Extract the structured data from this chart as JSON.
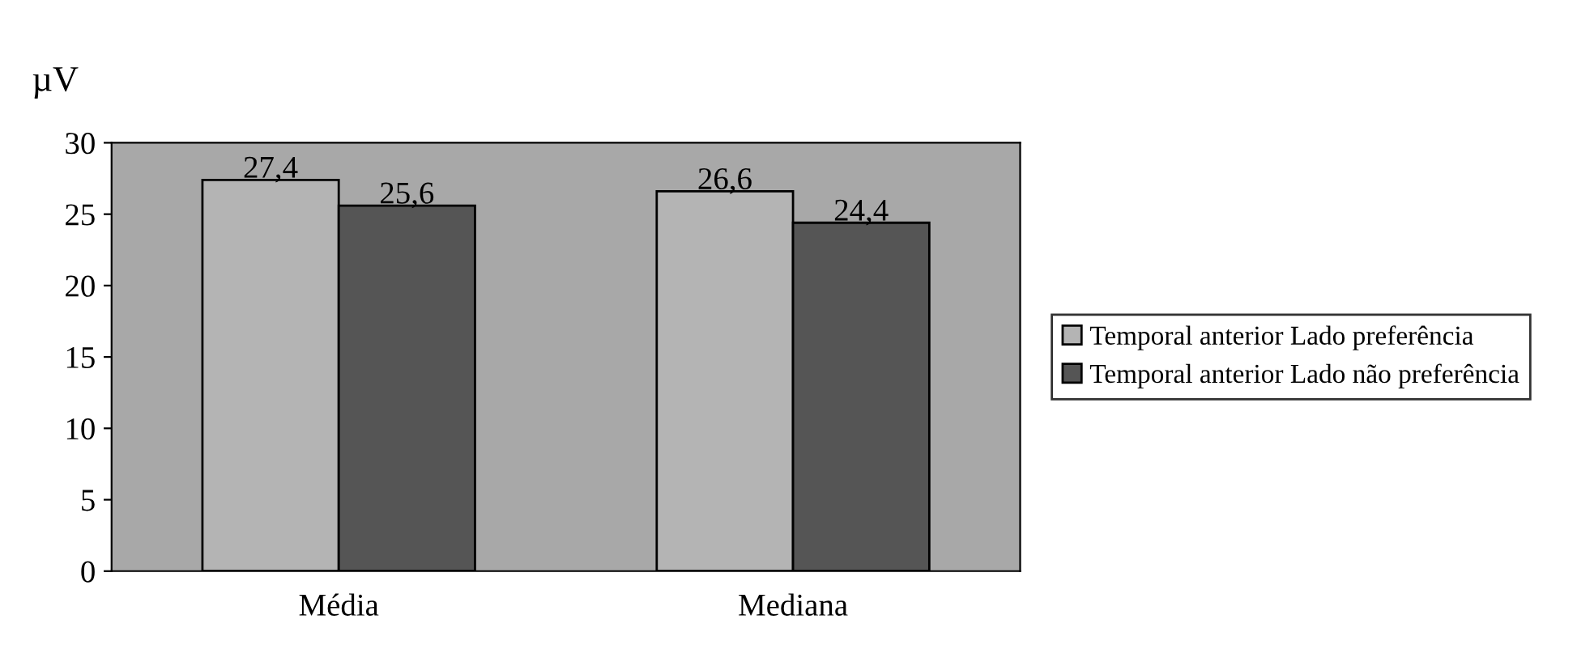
{
  "chart_data": {
    "type": "bar",
    "ylabel": "µV",
    "categories": [
      "Média",
      "Mediana"
    ],
    "series": [
      {
        "name": "Temporal anterior Lado preferência",
        "color": "#b4b4b4",
        "values": [
          27.4,
          26.6
        ],
        "value_labels": [
          "27,4",
          "26,6"
        ]
      },
      {
        "name": "Temporal anterior Lado não preferência",
        "color": "#555555",
        "values": [
          25.6,
          24.4
        ],
        "value_labels": [
          "25,6",
          "24,4"
        ]
      }
    ],
    "ylim": [
      0,
      30
    ],
    "yticks": [
      0,
      5,
      10,
      15,
      20,
      25,
      30
    ],
    "grid": false,
    "legend": "right"
  }
}
